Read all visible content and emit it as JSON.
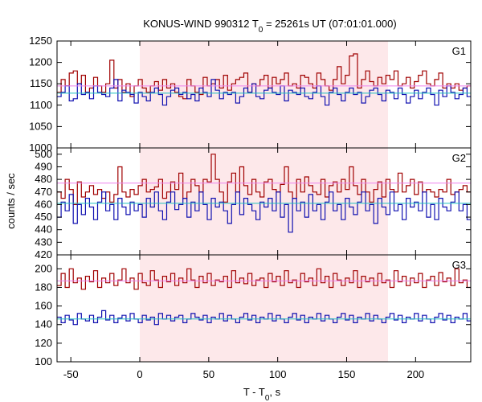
{
  "chart_data": {
    "type": "line",
    "title": "KONUS-WIND 990312 T",
    "title_sub": "0",
    "title_rest": " = 25261s UT (07:01:01.000)",
    "xlabel": "T - T",
    "xlabel_sub": "0",
    "xlabel_rest": ", s",
    "ylabel": "counts / sec",
    "xlim": [
      -60,
      240
    ],
    "x_ticks": [
      -50,
      0,
      50,
      100,
      150,
      200
    ],
    "highlight_interval": [
      0,
      180
    ],
    "highlight_color": "#fde8ea",
    "bin_width": 2.944,
    "colors": {
      "upper": "#a00000",
      "lower": "#1010b0",
      "upper_bg": "#ee82ee",
      "lower_bg": "#20c0c0"
    },
    "panels": [
      {
        "label": "G1",
        "ylim": [
          1000,
          1250
        ],
        "y_ticks": [
          1000,
          1050,
          1100,
          1150,
          1200,
          1250
        ],
        "background_levels": {
          "upper": 1145,
          "lower": 1128
        },
        "series": [
          {
            "key": "upper",
            "x_start": -60,
            "values": [
              1130,
              1160,
              1145,
              1175,
              1180,
              1150,
              1170,
              1130,
              1140,
              1165,
              1145,
              1130,
              1150,
              1205,
              1140,
              1160,
              1130,
              1150,
              1120,
              1145,
              1160,
              1140,
              1130,
              1145,
              1155,
              1135,
              1160,
              1140,
              1150,
              1130,
              1120,
              1115,
              1160,
              1145,
              1130,
              1125,
              1165,
              1145,
              1150,
              1160,
              1140,
              1170,
              1135,
              1150,
              1160,
              1165,
              1175,
              1130,
              1150,
              1145,
              1160,
              1170,
              1140,
              1165,
              1150,
              1160,
              1175,
              1145,
              1150,
              1140,
              1170,
              1165,
              1150,
              1140,
              1175,
              1160,
              1145,
              1135,
              1160,
              1190,
              1150,
              1170,
              1215,
              1220,
              1140,
              1160,
              1180,
              1155,
              1145,
              1165,
              1150,
              1170,
              1160,
              1180,
              1145,
              1150,
              1165,
              1140,
              1155,
              1170,
              1180,
              1150,
              1145,
              1160,
              1175,
              1140,
              1150,
              1140,
              1150,
              1135,
              1140,
              1145,
              1155,
              1140,
              1150,
              1140,
              1155,
              1150,
              1165,
              1140,
              1130,
              1155
            ]
          },
          {
            "key": "lower",
            "x_start": -60,
            "values": [
              1120,
              1130,
              1145,
              1110,
              1115,
              1150,
              1125,
              1130,
              1115,
              1145,
              1130,
              1125,
              1120,
              1140,
              1160,
              1110,
              1135,
              1130,
              1125,
              1105,
              1130,
              1120,
              1110,
              1130,
              1140,
              1125,
              1100,
              1120,
              1135,
              1140,
              1125,
              1130,
              1115,
              1125,
              1110,
              1140,
              1130,
              1120,
              1160,
              1135,
              1115,
              1130,
              1125,
              1130,
              1105,
              1120,
              1140,
              1130,
              1150,
              1120,
              1115,
              1135,
              1140,
              1130,
              1125,
              1145,
              1110,
              1135,
              1130,
              1125,
              1140,
              1120,
              1115,
              1130,
              1145,
              1120,
              1100,
              1130,
              1140,
              1125,
              1110,
              1130,
              1140,
              1125,
              1130,
              1105,
              1120,
              1135,
              1140,
              1125,
              1110,
              1135,
              1130,
              1115,
              1140,
              1125,
              1105,
              1120,
              1135,
              1115,
              1130,
              1140,
              1125,
              1100,
              1135,
              1120,
              1145,
              1130,
              1115,
              1125,
              1140,
              1120,
              1150,
              1130,
              1120,
              1135,
              1110,
              1130,
              1145,
              1135,
              1140,
              1150
            ]
          }
        ]
      },
      {
        "label": "G2",
        "ylim": [
          420,
          505
        ],
        "y_ticks": [
          420,
          430,
          440,
          450,
          460,
          470,
          480,
          490,
          500
        ],
        "background_levels": {
          "upper": 477,
          "lower": 461
        },
        "series": [
          {
            "key": "upper",
            "x_start": -60,
            "values": [
              470,
              465,
              480,
              472,
              460,
              478,
              466,
              470,
              475,
              468,
              472,
              465,
              470,
              462,
              468,
              490,
              470,
              466,
              472,
              468,
              475,
              480,
              470,
              472,
              474,
              480,
              465,
              470,
              478,
              472,
              485,
              465,
              470,
              480,
              475,
              470,
              480,
              478,
              500,
              480,
              470,
              462,
              478,
              485,
              470,
              490,
              475,
              468,
              480,
              470,
              466,
              478,
              480,
              472,
              470,
              476,
              490,
              470,
              465,
              480,
              470,
              482,
              475,
              470,
              468,
              480,
              466,
              475,
              478,
              470,
              480,
              472,
              490,
              475,
              468,
              480,
              470,
              462,
              472,
              478,
              466,
              480,
              472,
              470,
              485,
              470,
              475,
              480,
              468,
              478,
              470,
              472,
              470,
              466,
              472,
              470,
              480,
              468,
              470,
              472,
              475,
              470,
              466,
              472,
              480,
              470,
              475,
              466,
              472,
              478,
              468,
              470
            ]
          },
          {
            "key": "lower",
            "x_start": -60,
            "values": [
              450,
              462,
              455,
              468,
              445,
              460,
              452,
              465,
              458,
              448,
              462,
              470,
              455,
              460,
              448,
              465,
              458,
              452,
              462,
              455,
              460,
              450,
              465,
              458,
              470,
              455,
              448,
              462,
              470,
              456,
              460,
              465,
              450,
              462,
              455,
              470,
              460,
              448,
              465,
              458,
              462,
              455,
              445,
              460,
              470,
              452,
              465,
              460,
              455,
              448,
              462,
              458,
              465,
              455,
              470,
              450,
              460,
              438,
              465,
              455,
              462,
              450,
              468,
              455,
              460,
              448,
              462,
              470,
              455,
              460,
              448,
              465,
              458,
              452,
              462,
              470,
              455,
              460,
              445,
              465,
              458,
              452,
              470,
              455,
              460,
              448,
              465,
              458,
              462,
              455,
              470,
              450,
              460,
              448,
              465,
              458,
              455,
              462,
              470,
              455,
              460,
              448,
              465,
              458,
              462,
              455,
              445,
              460,
              452,
              465,
              458,
              460
            ]
          }
        ]
      },
      {
        "label": "G3",
        "ylim": [
          100,
          215
        ],
        "y_ticks": [
          100,
          120,
          140,
          160,
          180,
          200
        ],
        "background_levels": {
          "upper": 187,
          "lower": 146
        },
        "series": [
          {
            "key": "upper",
            "x_start": -60,
            "values": [
              182,
              195,
              180,
              200,
              185,
              190,
              178,
              192,
              186,
              198,
              180,
              190,
              185,
              195,
              182,
              188,
              200,
              185,
              190,
              178,
              195,
              185,
              182,
              198,
              188,
              180,
              192,
              186,
              195,
              182,
              190,
              185,
              200,
              188,
              180,
              192,
              185,
              195,
              182,
              188,
              186,
              192,
              180,
              198,
              185,
              190,
              184,
              195,
              182,
              188,
              190,
              180,
              195,
              186,
              192,
              182,
              198,
              185,
              188,
              180,
              195,
              186,
              190,
              182,
              200,
              185,
              192,
              180,
              195,
              188,
              182,
              190,
              185,
              198,
              180,
              192,
              186,
              190,
              182,
              195,
              185,
              188,
              180,
              198,
              186,
              192,
              182,
              190,
              185,
              195,
              180,
              188,
              192,
              182,
              196,
              186,
              190,
              182,
              200,
              185,
              188,
              180,
              195,
              186,
              192,
              182,
              190,
              180,
              195,
              186,
              190,
              180
            ]
          },
          {
            "key": "lower",
            "x_start": -60,
            "values": [
              148,
              142,
              150,
              145,
              140,
              152,
              146,
              144,
              150,
              142,
              148,
              155,
              145,
              150,
              142,
              147,
              150,
              144,
              152,
              146,
              142,
              150,
              145,
              148,
              140,
              152,
              146,
              150,
              144,
              148,
              150,
              142,
              146,
              152,
              148,
              145,
              150,
              142,
              148,
              146,
              152,
              144,
              150,
              146,
              142,
              148,
              152,
              145,
              150,
              142,
              148,
              146,
              152,
              144,
              150,
              146,
              142,
              148,
              152,
              145,
              150,
              142,
              148,
              146,
              152,
              144,
              150,
              146,
              142,
              148,
              152,
              145,
              150,
              142,
              148,
              146,
              152,
              144,
              150,
              146,
              142,
              148,
              152,
              145,
              150,
              142,
              148,
              146,
              152,
              144,
              150,
              146,
              142,
              148,
              152,
              145,
              150,
              142,
              148,
              146,
              152,
              144,
              150,
              146,
              142,
              148,
              152,
              145,
              150,
              142,
              148,
              146
            ]
          }
        ]
      }
    ]
  }
}
